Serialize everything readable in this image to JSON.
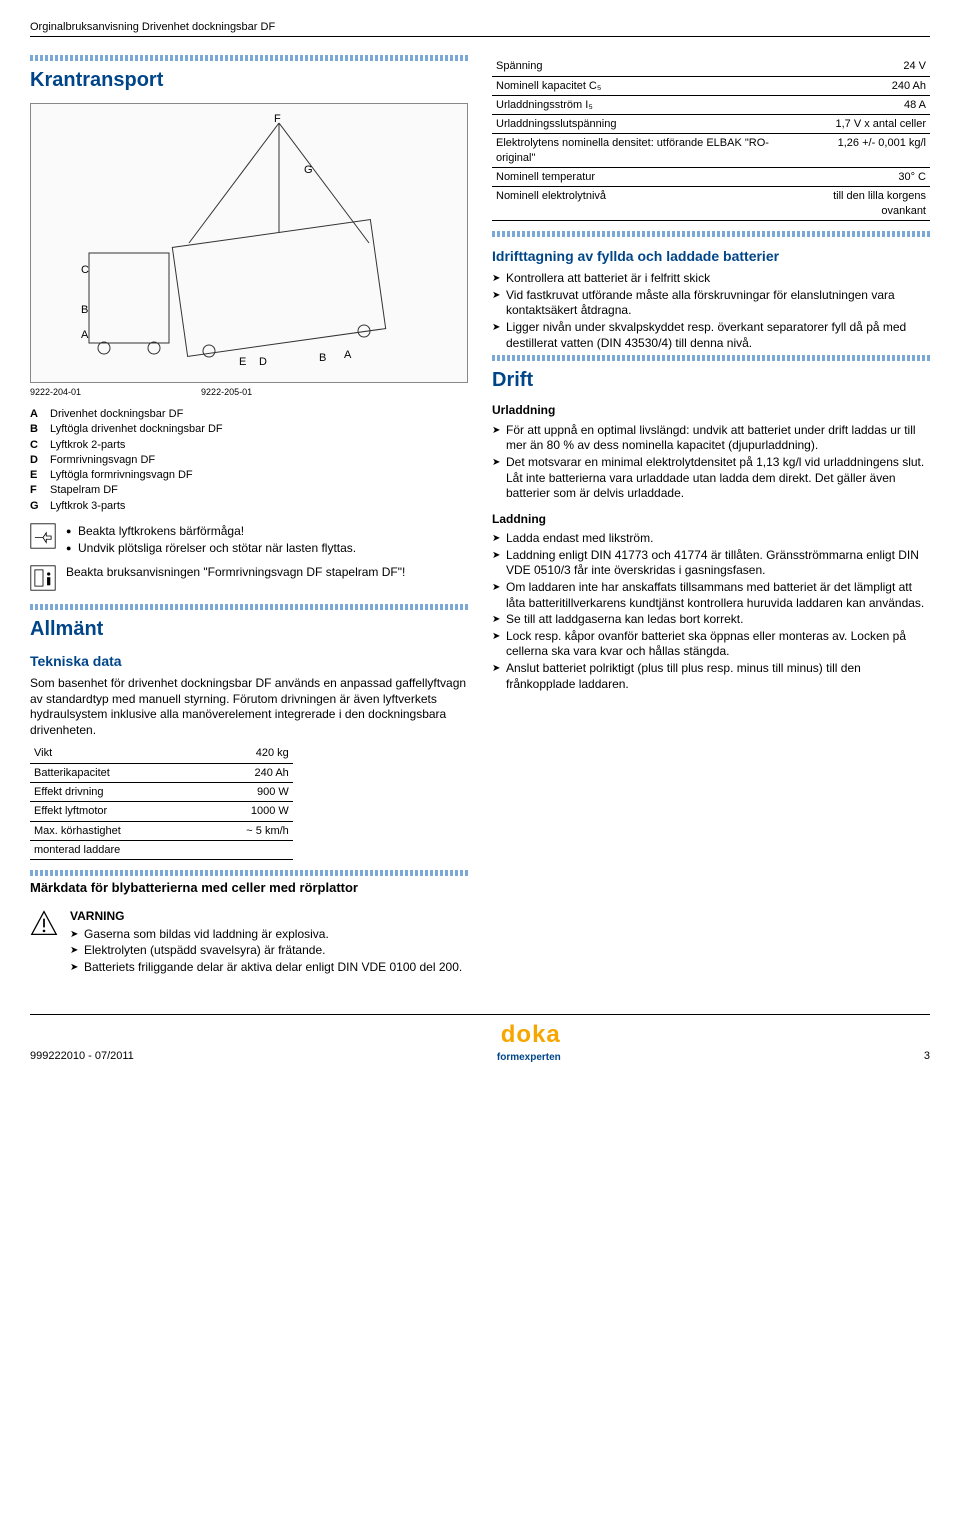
{
  "header": {
    "top_left": "Orginalbruksanvisning Drivenhet dockningsbar DF"
  },
  "left": {
    "title": "Krantransport",
    "diagram_placeholder": "[diagram]",
    "code_a": "9222-204-01",
    "code_b": "9222-205-01",
    "legend": [
      {
        "k": "A",
        "v": "Drivenhet dockningsbar DF"
      },
      {
        "k": "B",
        "v": "Lyftögla drivenhet dockningsbar DF"
      },
      {
        "k": "C",
        "v": "Lyftkrok 2-parts"
      },
      {
        "k": "D",
        "v": "Formrivningsvagn DF"
      },
      {
        "k": "E",
        "v": "Lyftögla formrivningsvagn DF"
      },
      {
        "k": "F",
        "v": "Stapelram DF"
      },
      {
        "k": "G",
        "v": "Lyftkrok 3-parts"
      }
    ],
    "note_bullets": [
      "Beakta lyftkrokens bärförmåga!",
      "Undvik plötsliga rörelser och stötar när lasten flyttas."
    ],
    "info_note": "Beakta bruksanvisningen \"Formrivningsvagn DF stapelram DF\"!",
    "allmant_title": "Allmänt",
    "teknisk_title": "Tekniska data",
    "teknisk_text": "Som basenhet för drivenhet dockningsbar DF används en anpassad gaffellyftvagn av standardtyp med manuell styrning. Förutom drivningen är även lyftverkets hydraulsystem inklusive alla manöverelement integrerade i den dockningsbara drivenheten.",
    "spec1": [
      {
        "k": "Vikt",
        "v": "420 kg"
      },
      {
        "k": "Batterikapacitet",
        "v": "240 Ah"
      },
      {
        "k": "Effekt drivning",
        "v": "900 W"
      },
      {
        "k": "Effekt lyftmotor",
        "v": "1000 W"
      },
      {
        "k": "Max. körhastighet",
        "v": "~ 5 km/h"
      },
      {
        "k": "monterad laddare",
        "v": ""
      }
    ],
    "markdata_title": "Märkdata för blybatterierna med celler med rörplattor",
    "warning_label": "VARNING",
    "warning_items": [
      "Gaserna som bildas vid laddning är explosiva.",
      "Elektrolyten (utspädd svavelsyra) är frätande.",
      "Batteriets friliggande delar är aktiva delar enligt DIN VDE 0100 del 200."
    ]
  },
  "right": {
    "spec2": [
      {
        "k": "Spänning",
        "v": "24 V"
      },
      {
        "k": "Nominell kapacitet C₅",
        "v": "240 Ah"
      },
      {
        "k": "Urladdningsström I₅",
        "v": "48 A"
      },
      {
        "k": "Urladdningsslutspänning",
        "v": "1,7 V x antal celler"
      },
      {
        "k": "Elektrolytens nominella densitet: utförande ELBAK \"RO-original\"",
        "v": "1,26 +/- 0,001 kg/l"
      },
      {
        "k": "Nominell temperatur",
        "v": "30° C"
      },
      {
        "k": "Nominell elektrolytnivå",
        "v": "till den lilla korgens ovankant"
      }
    ],
    "idrift_title": "Idrifttagning av fyllda och laddade batterier",
    "idrift_items": [
      "Kontrollera att batteriet är i felfritt skick",
      "Vid fastkruvat utförande måste alla förskruvningar för elanslutningen vara kontaktsäkert åtdragna.",
      "Ligger nivån under skvalpskyddet resp. överkant separatorer fyll då på med destillerat vatten (DIN 43530/4) till denna nivå."
    ],
    "drift_title": "Drift",
    "urladd_title": "Urladdning",
    "urladd_items": [
      "För att uppnå en optimal livslängd: undvik att batteriet under drift laddas ur till mer än 80 % av dess nominella kapacitet (djupurladdning).",
      "Det motsvarar en minimal elektrolytdensitet på 1,13 kg/l vid urladdningens slut. Låt inte batterierna vara urladdade utan ladda dem direkt. Det gäller även batterier som är delvis urladdade."
    ],
    "ladd_title": "Laddning",
    "ladd_items": [
      "Ladda endast med likström.",
      "Laddning enligt DIN 41773 och 41774 är tillåten. Gränsströmmarna enligt DIN VDE 0510/3 får inte överskridas i gasningsfasen.",
      "Om laddaren inte har anskaffats tillsammans med batteriet är det lämpligt att låta batteritillverkarens kundtjänst kontrollera huruvida laddaren kan användas.",
      "Se till att laddgaserna kan ledas bort korrekt.",
      "Lock resp. kåpor ovanför batteriet ska öppnas eller monteras av. Locken på cellerna ska vara kvar och hållas stängda.",
      "Anslut batteriet polriktigt (plus till plus resp. minus till minus) till den frånkopplade laddaren."
    ]
  },
  "footer": {
    "left": "999222010 - 07/2011",
    "page": "3",
    "brand": "doka",
    "tag": "formexperten"
  },
  "colors": {
    "blue": "#004588",
    "orange": "#f7a600"
  }
}
